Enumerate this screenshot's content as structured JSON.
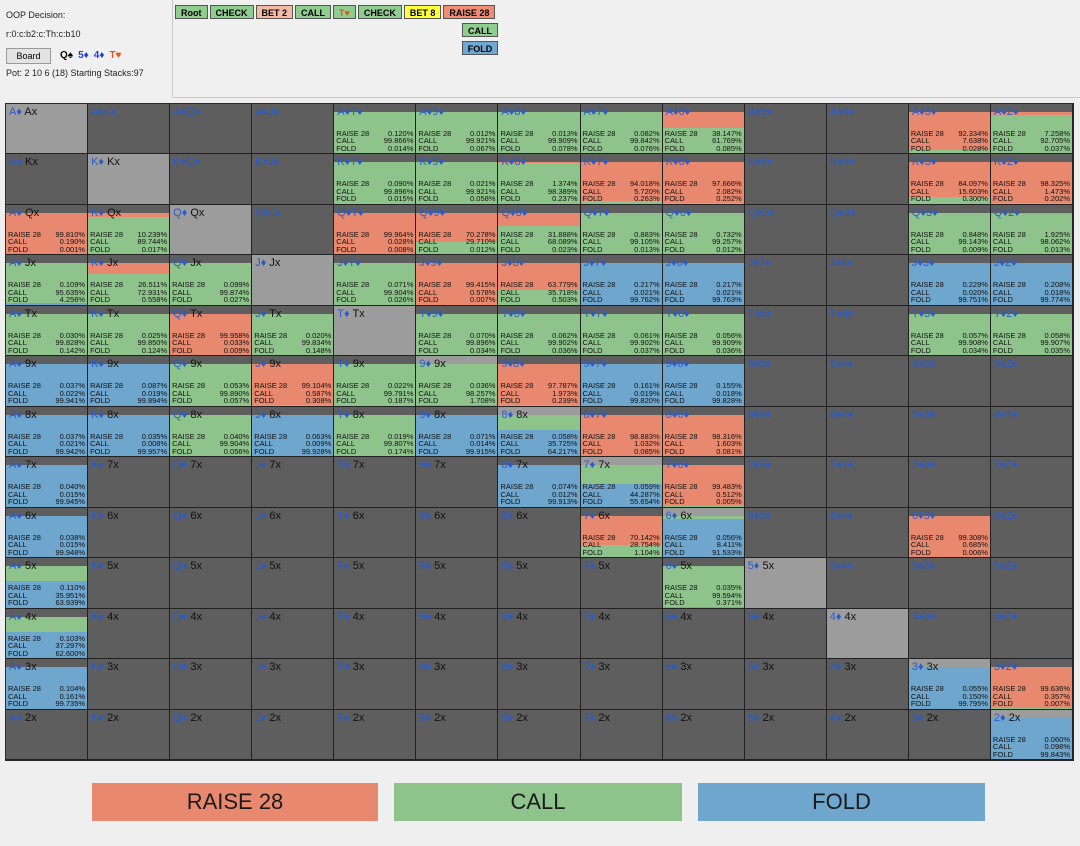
{
  "info": {
    "title": "OOP Decision:",
    "board_line": "r:0:c:b2:c:Th:c:b10",
    "board_button": "Board",
    "pot_line": "Pot: 2 10 6 (18) Starting Stacks:97"
  },
  "board_cards": [
    {
      "rank": "Q",
      "suit": "♠",
      "color": "#000000"
    },
    {
      "rank": "5",
      "suit": "♦",
      "color": "#1f3fd6"
    },
    {
      "rank": "4",
      "suit": "♦",
      "color": "#1f3fd6"
    },
    {
      "rank": "T",
      "suit": "♥",
      "color": "#e0581a"
    }
  ],
  "path": [
    {
      "label": "Root",
      "bg": "#8fce8f"
    },
    {
      "label": "CHECK",
      "bg": "#8fce8f"
    },
    {
      "label": "BET 2",
      "bg": "#f3b9a5"
    },
    {
      "label": "CALL",
      "bg": "#8fce8f"
    },
    {
      "label": "T♥",
      "bg": "#8fce8f",
      "fg": "#e0581a"
    },
    {
      "label": "CHECK",
      "bg": "#8fce8f"
    },
    {
      "label": "BET 8",
      "bg": "#ffff3c"
    },
    {
      "label": "RAISE 28",
      "bg": "#ee8c74"
    }
  ],
  "options": [
    {
      "label": "CALL",
      "bg": "#8fce8f"
    },
    {
      "label": "FOLD",
      "bg": "#6fa8d0"
    }
  ],
  "colors": {
    "raise": "#e8896f",
    "call": "#8ec48b",
    "fold": "#6ea6cd",
    "empty": "#5e5e5e",
    "diag": "#9c9c9c"
  },
  "legend": {
    "raise": "RAISE 28",
    "call": "CALL",
    "fold": "FOLD"
  },
  "stat_labels": {
    "raise": "RAISE 28",
    "call": "CALL",
    "fold": "FOLD"
  },
  "grid": [
    [
      {
        "name": "A♦ Ax",
        "d": 1
      },
      {
        "name": "A♦K♦"
      },
      {
        "name": "A♦Q♦"
      },
      {
        "name": "A♦J♦"
      },
      {
        "name": "A♦T♦",
        "s": [
          "0.120%",
          "99.866%",
          "0.014%"
        ]
      },
      {
        "name": "A♦9♦",
        "s": [
          "0.012%",
          "99.921%",
          "0.067%"
        ]
      },
      {
        "name": "A♦8♦",
        "s": [
          "0.013%",
          "99.909%",
          "0.078%"
        ]
      },
      {
        "name": "A♦7♦",
        "s": [
          "0.082%",
          "99.842%",
          "0.076%"
        ]
      },
      {
        "name": "A♦6♦",
        "s": [
          "38.147%",
          "61.769%",
          "0.085%"
        ]
      },
      {
        "name": "A♦5♦"
      },
      {
        "name": "A♦4♦"
      },
      {
        "name": "A♦3♦",
        "s": [
          "92.334%",
          "7.638%",
          "0.028%"
        ]
      },
      {
        "name": "A♦2♦",
        "s": [
          "7.258%",
          "92.705%",
          "0.037%"
        ]
      }
    ],
    [
      {
        "name": "A♦ Kx"
      },
      {
        "name": "K♦ Kx",
        "d": 1
      },
      {
        "name": "K♦Q♦"
      },
      {
        "name": "K♦J♦"
      },
      {
        "name": "K♦T♦",
        "s": [
          "0.090%",
          "99.896%",
          "0.015%"
        ]
      },
      {
        "name": "K♦9♦",
        "s": [
          "0.021%",
          "99.921%",
          "0.058%"
        ]
      },
      {
        "name": "K♦8♦",
        "s": [
          "1.374%",
          "98.389%",
          "0.237%"
        ]
      },
      {
        "name": "K♦7♦",
        "s": [
          "94.018%",
          "5.720%",
          "0.263%"
        ]
      },
      {
        "name": "K♦6♦",
        "s": [
          "97.666%",
          "2.082%",
          "0.252%"
        ]
      },
      {
        "name": "K♦5♦"
      },
      {
        "name": "K♦4♦"
      },
      {
        "name": "K♦3♦",
        "s": [
          "84.097%",
          "15.603%",
          "0.300%"
        ]
      },
      {
        "name": "K♦2♦",
        "s": [
          "98.325%",
          "1.473%",
          "0.202%"
        ]
      }
    ],
    [
      {
        "name": "A♦ Qx",
        "s": [
          "99.810%",
          "0.190%",
          "0.001%"
        ]
      },
      {
        "name": "K♦ Qx",
        "s": [
          "10.239%",
          "89.744%",
          "0.017%"
        ]
      },
      {
        "name": "Q♦ Qx",
        "d": 1
      },
      {
        "name": "Q♦J♦"
      },
      {
        "name": "Q♦T♦",
        "s": [
          "99.964%",
          "0.028%",
          "0.008%"
        ]
      },
      {
        "name": "Q♦9♦",
        "s": [
          "70.278%",
          "29.710%",
          "0.012%"
        ]
      },
      {
        "name": "Q♦8♦",
        "s": [
          "31.888%",
          "68.089%",
          "0.023%"
        ]
      },
      {
        "name": "Q♦7♦",
        "s": [
          "0.883%",
          "99.105%",
          "0.013%"
        ]
      },
      {
        "name": "Q♦6♦",
        "s": [
          "0.732%",
          "99.257%",
          "0.012%"
        ]
      },
      {
        "name": "Q♦5♦"
      },
      {
        "name": "Q♦4♦"
      },
      {
        "name": "Q♦3♦",
        "s": [
          "0.848%",
          "99.143%",
          "0.009%"
        ]
      },
      {
        "name": "Q♦2♦",
        "s": [
          "1.925%",
          "98.062%",
          "0.013%"
        ]
      }
    ],
    [
      {
        "name": "A♦ Jx",
        "s": [
          "0.109%",
          "95.635%",
          "4.256%"
        ]
      },
      {
        "name": "K♦ Jx",
        "s": [
          "26.511%",
          "72.931%",
          "0.558%"
        ]
      },
      {
        "name": "Q♦ Jx",
        "s": [
          "0.099%",
          "99.874%",
          "0.027%"
        ]
      },
      {
        "name": "J♦ Jx",
        "d": 1
      },
      {
        "name": "J♦T♦",
        "s": [
          "0.071%",
          "99.904%",
          "0.026%"
        ]
      },
      {
        "name": "J♦9♦",
        "s": [
          "99.415%",
          "0.578%",
          "0.007%"
        ]
      },
      {
        "name": "J♦8♦",
        "s": [
          "63.779%",
          "35.718%",
          "0.503%"
        ]
      },
      {
        "name": "J♦7♦",
        "s": [
          "0.217%",
          "0.021%",
          "99.762%"
        ]
      },
      {
        "name": "J♦6♦",
        "s": [
          "0.217%",
          "0.021%",
          "99.763%"
        ]
      },
      {
        "name": "J♦5♦"
      },
      {
        "name": "J♦4♦"
      },
      {
        "name": "J♦3♦",
        "s": [
          "0.229%",
          "0.020%",
          "99.751%"
        ]
      },
      {
        "name": "J♦2♦",
        "s": [
          "0.208%",
          "0.018%",
          "99.774%"
        ]
      }
    ],
    [
      {
        "name": "A♦ Tx",
        "s": [
          "0.030%",
          "99.828%",
          "0.142%"
        ]
      },
      {
        "name": "K♦ Tx",
        "s": [
          "0.025%",
          "99.850%",
          "0.124%"
        ]
      },
      {
        "name": "Q♦ Tx",
        "s": [
          "99.958%",
          "0.033%",
          "0.009%"
        ]
      },
      {
        "name": "J♦ Tx",
        "s": [
          "0.020%",
          "99.834%",
          "0.148%"
        ]
      },
      {
        "name": "T♦ Tx",
        "d": 1
      },
      {
        "name": "T♦9♦",
        "s": [
          "0.070%",
          "99.896%",
          "0.034%"
        ]
      },
      {
        "name": "T♦8♦",
        "s": [
          "0.062%",
          "99.902%",
          "0.036%"
        ]
      },
      {
        "name": "T♦7♦",
        "s": [
          "0.061%",
          "99.902%",
          "0.037%"
        ]
      },
      {
        "name": "T♦6♦",
        "s": [
          "0.056%",
          "99.909%",
          "0.036%"
        ]
      },
      {
        "name": "T♦5♦"
      },
      {
        "name": "T♦4♦"
      },
      {
        "name": "T♦3♦",
        "s": [
          "0.057%",
          "99.908%",
          "0.034%"
        ]
      },
      {
        "name": "T♦2♦",
        "s": [
          "0.058%",
          "99.907%",
          "0.035%"
        ]
      }
    ],
    [
      {
        "name": "A♦ 9x",
        "s": [
          "0.037%",
          "0.022%",
          "99.941%"
        ]
      },
      {
        "name": "K♦ 9x",
        "s": [
          "0.087%",
          "0.019%",
          "99.894%"
        ]
      },
      {
        "name": "Q♦ 9x",
        "s": [
          "0.053%",
          "99.890%",
          "0.057%"
        ]
      },
      {
        "name": "J♦ 9x",
        "s": [
          "99.104%",
          "0.587%",
          "0.308%"
        ]
      },
      {
        "name": "T♦ 9x",
        "s": [
          "0.022%",
          "99.791%",
          "0.187%"
        ]
      },
      {
        "name": "9♦ 9x",
        "d": 1,
        "s": [
          "0.036%",
          "98.257%",
          "1.708%"
        ]
      },
      {
        "name": "9♦8♦",
        "s": [
          "97.787%",
          "1.973%",
          "0.239%"
        ]
      },
      {
        "name": "9♦7♦",
        "s": [
          "0.161%",
          "0.019%",
          "99.820%"
        ]
      },
      {
        "name": "9♦6♦",
        "s": [
          "0.155%",
          "0.018%",
          "99.828%"
        ]
      },
      {
        "name": "9♦5♦"
      },
      {
        "name": "9♦4♦"
      },
      {
        "name": "9♦3♦"
      },
      {
        "name": "9♦2♦"
      }
    ],
    [
      {
        "name": "A♦ 8x",
        "s": [
          "0.037%",
          "0.021%",
          "99.942%"
        ]
      },
      {
        "name": "K♦ 8x",
        "s": [
          "0.035%",
          "0.008%",
          "99.957%"
        ]
      },
      {
        "name": "Q♦ 8x",
        "s": [
          "0.040%",
          "99.904%",
          "0.056%"
        ]
      },
      {
        "name": "J♦ 8x",
        "s": [
          "0.063%",
          "0.009%",
          "99.928%"
        ]
      },
      {
        "name": "T♦ 8x",
        "s": [
          "0.019%",
          "99.807%",
          "0.174%"
        ]
      },
      {
        "name": "9♦ 8x",
        "s": [
          "0.071%",
          "0.014%",
          "99.915%"
        ]
      },
      {
        "name": "8♦ 8x",
        "d": 1,
        "s": [
          "0.058%",
          "35.725%",
          "64.217%"
        ]
      },
      {
        "name": "8♦7♦",
        "s": [
          "98.883%",
          "1.032%",
          "0.085%"
        ]
      },
      {
        "name": "8♦6♦",
        "s": [
          "98.316%",
          "1.603%",
          "0.081%"
        ]
      },
      {
        "name": "8♦5♦"
      },
      {
        "name": "8♦4♦"
      },
      {
        "name": "8♦3♦"
      },
      {
        "name": "8♦2♦"
      }
    ],
    [
      {
        "name": "A♦ 7x",
        "s": [
          "0.040%",
          "0.015%",
          "99.945%"
        ]
      },
      {
        "name": "K♦ 7x"
      },
      {
        "name": "Q♦ 7x"
      },
      {
        "name": "J♦ 7x"
      },
      {
        "name": "T♦ 7x"
      },
      {
        "name": "9♦ 7x"
      },
      {
        "name": "8♦ 7x",
        "s": [
          "0.074%",
          "0.012%",
          "99.913%"
        ]
      },
      {
        "name": "7♦ 7x",
        "d": 1,
        "s": [
          "0.059%",
          "44.287%",
          "55.654%"
        ]
      },
      {
        "name": "7♦6♦",
        "s": [
          "99.483%",
          "0.512%",
          "0.005%"
        ]
      },
      {
        "name": "7♦5♦"
      },
      {
        "name": "7♦4♦"
      },
      {
        "name": "7♦3♦"
      },
      {
        "name": "7♦2♦"
      }
    ],
    [
      {
        "name": "A♦ 6x",
        "s": [
          "0.038%",
          "0.015%",
          "99.948%"
        ]
      },
      {
        "name": "K♦ 6x"
      },
      {
        "name": "Q♦ 6x"
      },
      {
        "name": "J♦ 6x"
      },
      {
        "name": "T♦ 6x"
      },
      {
        "name": "9♦ 6x"
      },
      {
        "name": "8♦ 6x"
      },
      {
        "name": "7♦ 6x",
        "s": [
          "70.142%",
          "28.754%",
          "1.104%"
        ]
      },
      {
        "name": "6♦ 6x",
        "d": 1,
        "s": [
          "0.056%",
          "8.411%",
          "91.533%"
        ]
      },
      {
        "name": "6♦5♦"
      },
      {
        "name": "6♦4♦"
      },
      {
        "name": "6♦3♦",
        "s": [
          "99.308%",
          "0.685%",
          "0.006%"
        ]
      },
      {
        "name": "6♦2♦"
      }
    ],
    [
      {
        "name": "A♦ 5x",
        "s": [
          "0.110%",
          "35.951%",
          "63.939%"
        ]
      },
      {
        "name": "K♦ 5x"
      },
      {
        "name": "Q♦ 5x"
      },
      {
        "name": "J♦ 5x"
      },
      {
        "name": "T♦ 5x"
      },
      {
        "name": "9♦ 5x"
      },
      {
        "name": "8♦ 5x"
      },
      {
        "name": "7♦ 5x"
      },
      {
        "name": "6♦ 5x",
        "s": [
          "0.035%",
          "99.594%",
          "0.371%"
        ]
      },
      {
        "name": "5♦ 5x",
        "d": 1
      },
      {
        "name": "5♦4♦"
      },
      {
        "name": "5♦3♦"
      },
      {
        "name": "5♦2♦"
      }
    ],
    [
      {
        "name": "A♦ 4x",
        "s": [
          "0.103%",
          "37.297%",
          "62.600%"
        ]
      },
      {
        "name": "K♦ 4x"
      },
      {
        "name": "Q♦ 4x"
      },
      {
        "name": "J♦ 4x"
      },
      {
        "name": "T♦ 4x"
      },
      {
        "name": "9♦ 4x"
      },
      {
        "name": "8♦ 4x"
      },
      {
        "name": "7♦ 4x"
      },
      {
        "name": "6♦ 4x"
      },
      {
        "name": "5♦ 4x"
      },
      {
        "name": "4♦ 4x",
        "d": 1
      },
      {
        "name": "4♦3♦"
      },
      {
        "name": "4♦2♦"
      }
    ],
    [
      {
        "name": "A♦ 3x",
        "s": [
          "0.104%",
          "0.161%",
          "99.735%"
        ]
      },
      {
        "name": "K♦ 3x"
      },
      {
        "name": "Q♦ 3x"
      },
      {
        "name": "J♦ 3x"
      },
      {
        "name": "T♦ 3x"
      },
      {
        "name": "9♦ 3x"
      },
      {
        "name": "8♦ 3x"
      },
      {
        "name": "7♦ 3x"
      },
      {
        "name": "6♦ 3x"
      },
      {
        "name": "5♦ 3x"
      },
      {
        "name": "4♦ 3x"
      },
      {
        "name": "3♦ 3x",
        "d": 1,
        "s": [
          "0.055%",
          "0.150%",
          "99.795%"
        ]
      },
      {
        "name": "3♦2♦",
        "s": [
          "99.636%",
          "0.357%",
          "0.007%"
        ]
      }
    ],
    [
      {
        "name": "A♦ 2x"
      },
      {
        "name": "K♦ 2x"
      },
      {
        "name": "Q♦ 2x"
      },
      {
        "name": "J♦ 2x"
      },
      {
        "name": "T♦ 2x"
      },
      {
        "name": "9♦ 2x"
      },
      {
        "name": "8♦ 2x"
      },
      {
        "name": "7♦ 2x"
      },
      {
        "name": "6♦ 2x"
      },
      {
        "name": "5♦ 2x"
      },
      {
        "name": "4♦ 2x"
      },
      {
        "name": "3♦ 2x"
      },
      {
        "name": "2♦ 2x",
        "d": 1,
        "s": [
          "0.060%",
          "0.098%",
          "99.843%"
        ]
      }
    ]
  ]
}
